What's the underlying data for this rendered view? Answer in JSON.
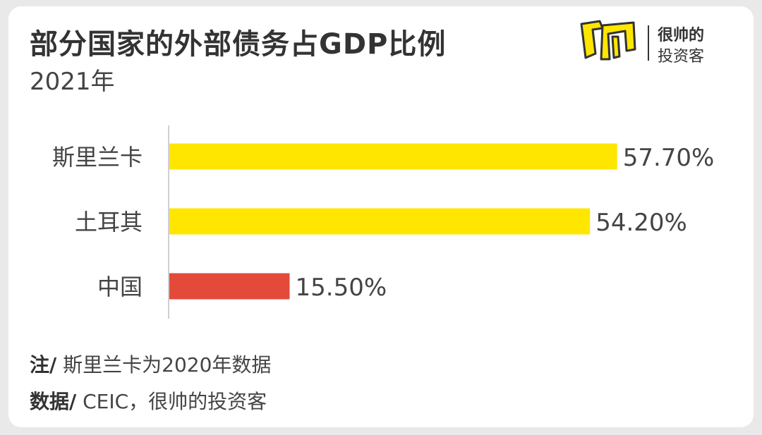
{
  "header": {
    "title": "部分国家的外部债务占GDP比例",
    "subtitle": "2021年"
  },
  "logo": {
    "mark_text": "帅",
    "line1": "很帅的",
    "line2": "投资客",
    "mark_color": "#FFE600"
  },
  "chart_data": {
    "type": "bar",
    "orientation": "horizontal",
    "categories": [
      "斯里兰卡",
      "土耳其",
      "中国"
    ],
    "values": [
      57.7,
      54.2,
      15.5
    ],
    "value_labels": [
      "57.70%",
      "54.20%",
      "15.50%"
    ],
    "colors": [
      "#FFE600",
      "#FFE600",
      "#E34A3A"
    ],
    "title": "部分国家的外部债务占GDP比例",
    "subtitle": "2021年",
    "xlabel": "",
    "ylabel": "",
    "xlim": [
      0,
      60
    ],
    "grid": false,
    "unit": "%"
  },
  "footer": {
    "note_label": "注/",
    "note_text": " 斯里兰卡为2020年数据",
    "source_label": "数据/",
    "source_text": " CEIC，很帅的投资客"
  }
}
